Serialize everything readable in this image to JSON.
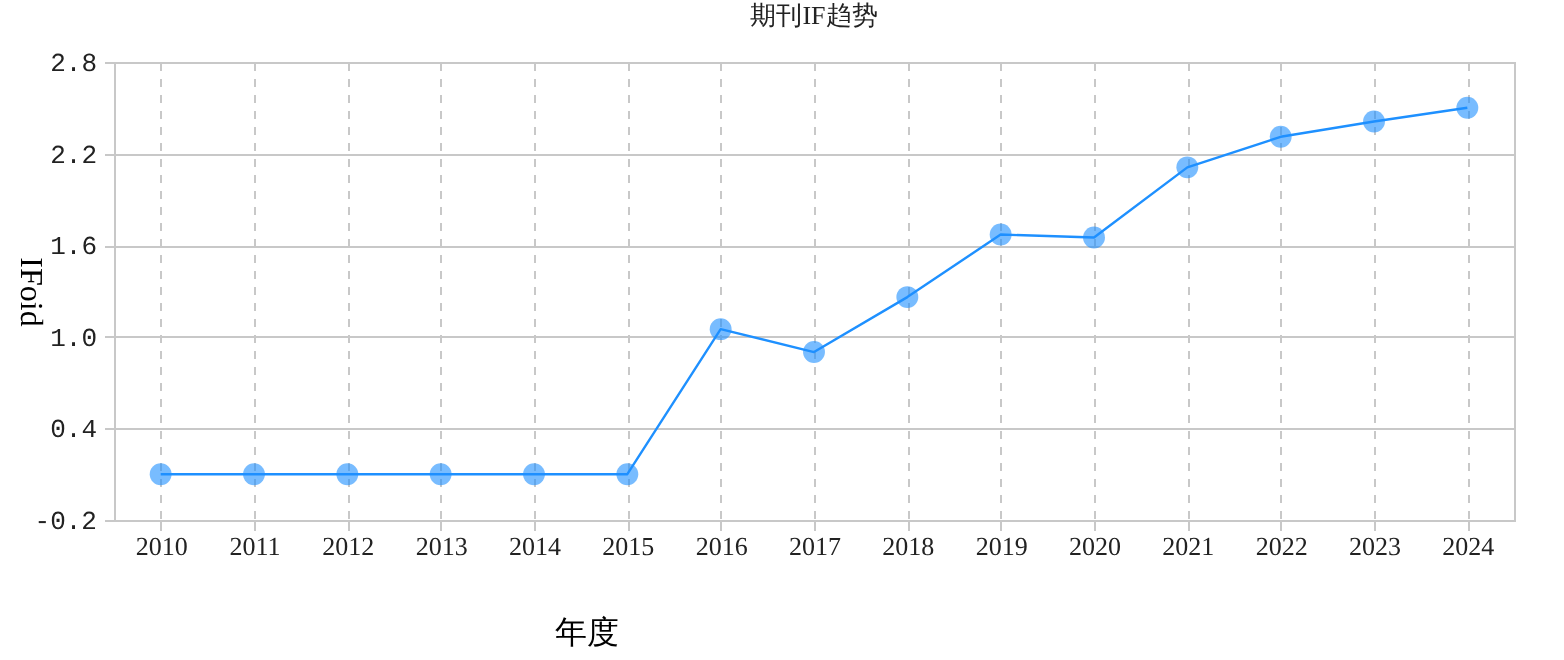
{
  "chart_data": {
    "type": "line",
    "title": "期刊IF趋势",
    "xlabel": "年度",
    "ylabel": "IFoid",
    "categories": [
      "2010",
      "2011",
      "2012",
      "2013",
      "2014",
      "2015",
      "2016",
      "2017",
      "2018",
      "2019",
      "2020",
      "2021",
      "2022",
      "2023",
      "2024"
    ],
    "series": [
      {
        "color": "#1e90ff",
        "values": [
          0.1,
          0.1,
          0.1,
          0.1,
          0.1,
          0.1,
          1.05,
          0.9,
          1.26,
          1.67,
          1.65,
          2.11,
          2.31,
          2.41,
          2.5
        ]
      }
    ],
    "ylim": [
      -0.2,
      2.8
    ],
    "yticks": [
      -0.2,
      0.4,
      {
        "value": 1,
        "label": "1.0"
      },
      1.6,
      2.2,
      2.8
    ],
    "grid": true,
    "marker": "circle",
    "line_style": "solid"
  }
}
